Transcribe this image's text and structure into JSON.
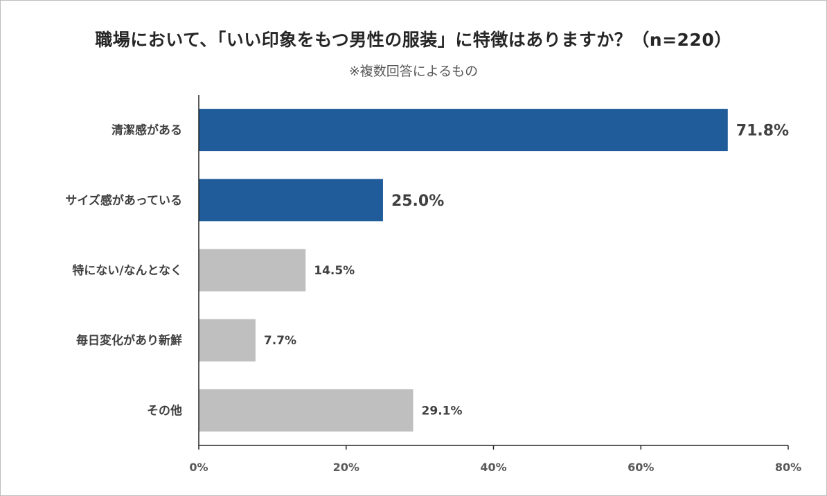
{
  "title": "職場において、「いい印象をもつ男性の服装」に特徴はありますか？（n=220）",
  "subtitle": "※複数回答によるもの",
  "colors": {
    "highlight": "#1f5c99",
    "normal": "#bfbfbf",
    "axis": "#262626",
    "text": "#404040"
  },
  "chart_data": {
    "type": "bar",
    "orientation": "horizontal",
    "title": "職場において、「いい印象をもつ男性の服装」に特徴はありますか？（n=220）",
    "subtitle": "※複数回答によるもの",
    "categories": [
      "清潔感がある",
      "サイズ感があっている",
      "特にない/なんとなく",
      "毎日変化があり新鮮",
      "その他"
    ],
    "values": [
      71.8,
      25.0,
      14.5,
      7.7,
      29.1
    ],
    "value_labels": [
      "71.8%",
      "25.0%",
      "14.5%",
      "7.7%",
      "29.1%"
    ],
    "highlighted": [
      true,
      true,
      false,
      false,
      false
    ],
    "xlim": [
      0,
      80
    ],
    "xticks": [
      0,
      20,
      40,
      60,
      80
    ],
    "xtick_labels": [
      "0%",
      "20%",
      "40%",
      "60%",
      "80%"
    ],
    "xlabel": "",
    "ylabel": "",
    "grid": false,
    "legend": "none"
  }
}
